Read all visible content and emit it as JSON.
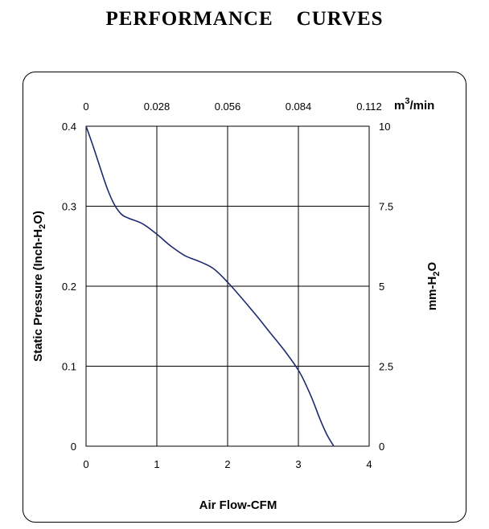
{
  "chart_data": {
    "type": "line",
    "title": "PERFORMANCE    CURVES",
    "xlabel": "Air Flow-CFM",
    "ylabel": "Static Pressure (Inch-H2O)",
    "ylabel_parts": {
      "pre": "Static Pressure (Inch-H",
      "sub": "2",
      "post": "O)"
    },
    "x2label_parts": {
      "pre": "m",
      "sup": "3",
      "post": "/min"
    },
    "y2label_parts": {
      "pre": "mm-H",
      "sub": "2",
      "post": "O"
    },
    "xlim": [
      0,
      4
    ],
    "ylim": [
      0,
      0.4
    ],
    "x_ticks": [
      "0",
      "1",
      "2",
      "3",
      "4"
    ],
    "y_ticks": [
      "0",
      "0.1",
      "0.2",
      "0.3",
      "0.4"
    ],
    "x2_ticks": [
      "0",
      "0.028",
      "0.056",
      "0.084",
      "0.112"
    ],
    "y2_ticks": [
      "0",
      "2.5",
      "5",
      "7.5",
      "10"
    ],
    "grid": true,
    "series": [
      {
        "color": "#1f2a6e",
        "x": [
          0,
          0.1,
          0.2,
          0.3,
          0.4,
          0.5,
          0.6,
          0.8,
          1.0,
          1.2,
          1.4,
          1.6,
          1.8,
          2.0,
          2.2,
          2.4,
          2.6,
          2.8,
          3.0,
          3.1,
          3.2,
          3.3,
          3.4,
          3.5
        ],
        "y": [
          0.4,
          0.375,
          0.348,
          0.322,
          0.302,
          0.29,
          0.285,
          0.278,
          0.265,
          0.25,
          0.238,
          0.231,
          0.222,
          0.205,
          0.185,
          0.164,
          0.142,
          0.12,
          0.095,
          0.078,
          0.058,
          0.035,
          0.015,
          0.0
        ]
      }
    ]
  }
}
